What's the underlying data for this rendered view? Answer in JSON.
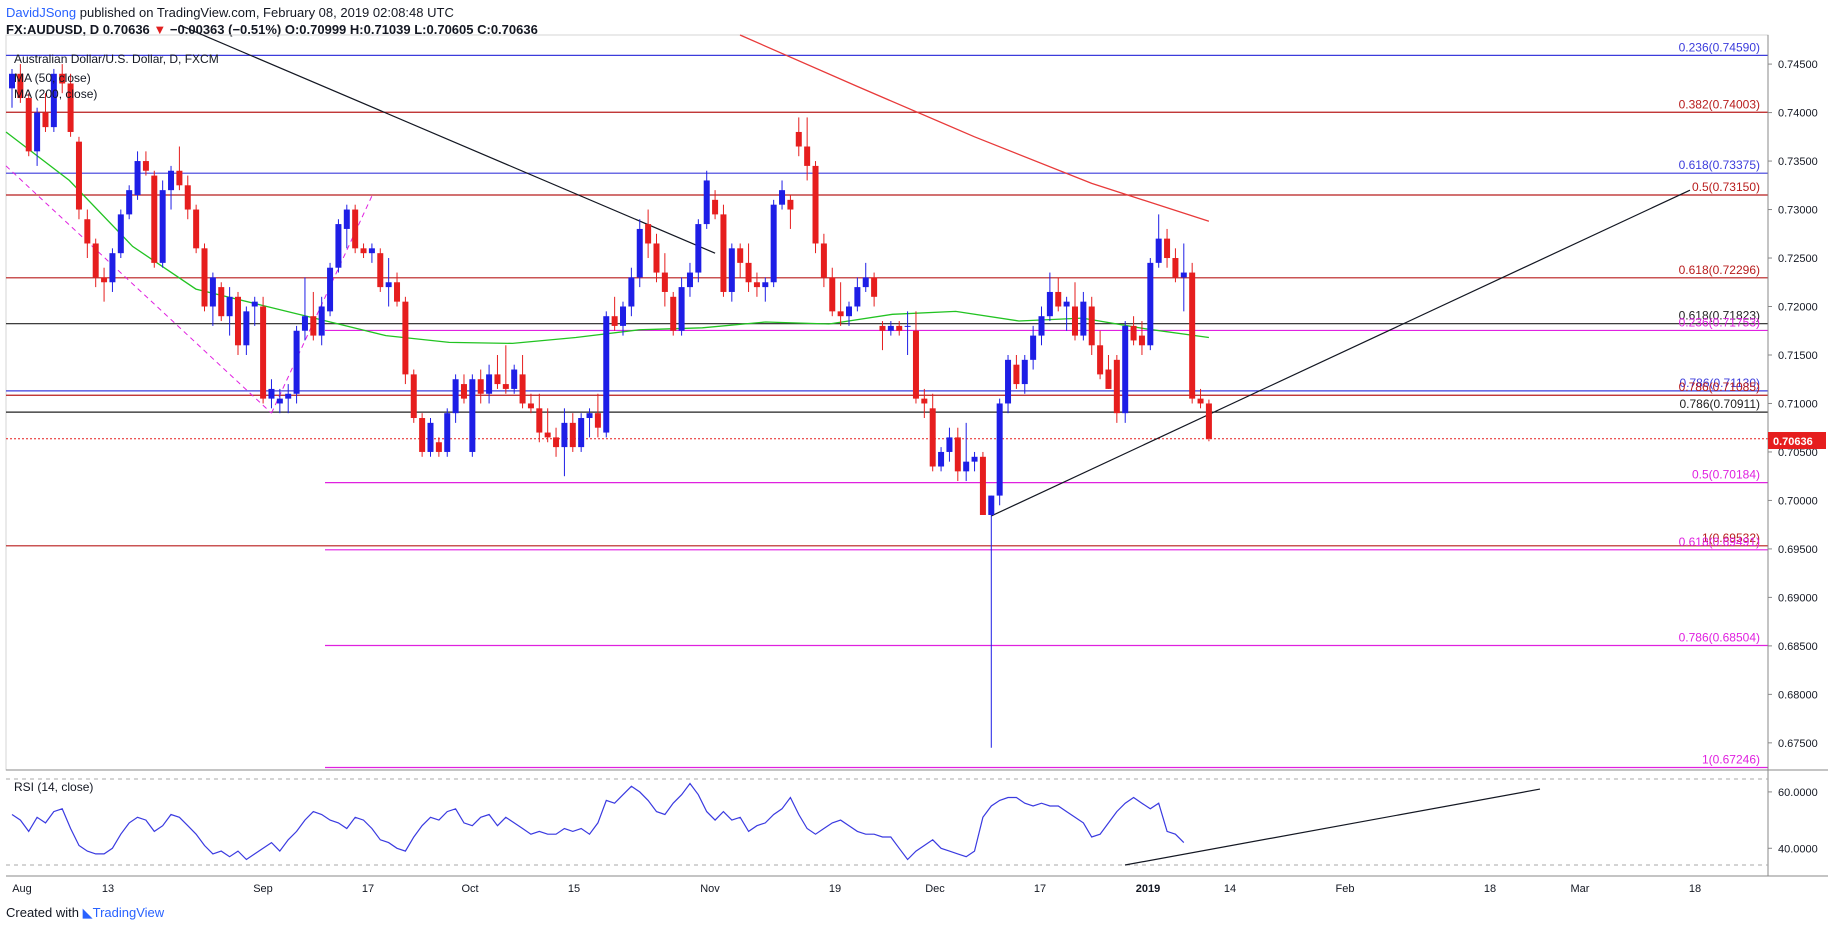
{
  "header": {
    "author": "DavidJSong",
    "published": "published on TradingView.com, February 08, 2019 02:08:48 UTC",
    "symbol": "FX:AUDUSD, D",
    "last": "0.70636",
    "change": "−0.00363 (−0.51%)",
    "ohlc": "O:0.70999 H:0.71039 L:0.70605 C:0.70636"
  },
  "legend": {
    "title": "Australian Dollar/U.S. Dollar, D, FXCM",
    "ma50": "MA (50, close)",
    "ma200": "MA (200, close)"
  },
  "rsi_label": "RSI (14, close)",
  "footer": {
    "created_with": "Created with",
    "brand": "TradingView"
  },
  "price_tag": "0.70636",
  "colors": {
    "up": "#1e1ee6",
    "down": "#e61e1e",
    "ma50": "#22c322",
    "ma200": "#e83a3a",
    "fib_blue": "#3c3cdc",
    "fib_red": "#b81c1c",
    "fib_magenta": "#e021e0"
  },
  "chart_data": [
    {
      "type": "candlestick",
      "title": "Australian Dollar/U.S. Dollar, D, FXCM",
      "ylim": [
        0.6722,
        0.748
      ],
      "y_ticks": [
        "0.74500",
        "0.74000",
        "0.73500",
        "0.73000",
        "0.72500",
        "0.72000",
        "0.71500",
        "0.71000",
        "0.70500",
        "0.70000",
        "0.69500",
        "0.69000",
        "0.68500",
        "0.68000",
        "0.67500"
      ],
      "x_ticks": [
        "Aug",
        "13",
        "Sep",
        "17",
        "Oct",
        "15",
        "Nov",
        "19",
        "Dec",
        "17",
        "2019",
        "14",
        "Feb",
        "18",
        "Mar",
        "18"
      ],
      "last_close": 0.70636,
      "fib_levels": [
        {
          "label": "0.236(0.74590)",
          "value": 0.7459,
          "color": "blue"
        },
        {
          "label": "0.382(0.74003)",
          "value": 0.74003,
          "color": "red"
        },
        {
          "label": "0.618(0.73375)",
          "value": 0.73375,
          "color": "blue"
        },
        {
          "label": "0.5(0.73150)",
          "value": 0.7315,
          "color": "red"
        },
        {
          "label": "0.618(0.72296)",
          "value": 0.72296,
          "color": "red"
        },
        {
          "label": "0.618(0.71823)",
          "value": 0.71823,
          "color": "black"
        },
        {
          "label": "0.236(0.71753)",
          "value": 0.71753,
          "color": "magenta"
        },
        {
          "label": "0.786(0.71130)",
          "value": 0.7113,
          "color": "blue"
        },
        {
          "label": "0.786(0.71085)",
          "value": 0.71085,
          "color": "red"
        },
        {
          "label": "0.786(0.70911)",
          "value": 0.70911,
          "color": "black"
        },
        {
          "label": "0.5(0.70184)",
          "value": 0.70184,
          "color": "magenta"
        },
        {
          "label": "1(0.69532)",
          "value": 0.69532,
          "color": "red"
        },
        {
          "label": "0.618(0.69491)",
          "value": 0.69491,
          "color": "magenta"
        },
        {
          "label": "0.786(0.68504)",
          "value": 0.68504,
          "color": "magenta"
        },
        {
          "label": "1(0.67246)",
          "value": 0.67246,
          "color": "magenta"
        }
      ],
      "candles": [
        [
          0.7425,
          0.7445,
          0.7405,
          0.744
        ],
        [
          0.744,
          0.745,
          0.741,
          0.7415
        ],
        [
          0.7415,
          0.742,
          0.7355,
          0.736
        ],
        [
          0.736,
          0.7405,
          0.7345,
          0.74
        ],
        [
          0.74,
          0.742,
          0.738,
          0.7385
        ],
        [
          0.7385,
          0.7445,
          0.738,
          0.744
        ],
        [
          0.744,
          0.745,
          0.742,
          0.743
        ],
        [
          0.743,
          0.744,
          0.7375,
          0.738
        ],
        [
          0.737,
          0.7375,
          0.729,
          0.73
        ],
        [
          0.729,
          0.73,
          0.725,
          0.7265
        ],
        [
          0.7265,
          0.727,
          0.722,
          0.723
        ],
        [
          0.723,
          0.724,
          0.7205,
          0.7225
        ],
        [
          0.7225,
          0.726,
          0.7215,
          0.7255
        ],
        [
          0.7255,
          0.73,
          0.725,
          0.7295
        ],
        [
          0.7295,
          0.7325,
          0.729,
          0.732
        ],
        [
          0.7315,
          0.736,
          0.731,
          0.735
        ],
        [
          0.735,
          0.736,
          0.7335,
          0.734
        ],
        [
          0.7335,
          0.734,
          0.724,
          0.7245
        ],
        [
          0.7245,
          0.733,
          0.724,
          0.732
        ],
        [
          0.732,
          0.7345,
          0.73,
          0.734
        ],
        [
          0.734,
          0.7365,
          0.732,
          0.7325
        ],
        [
          0.7325,
          0.7335,
          0.729,
          0.73
        ],
        [
          0.73,
          0.7305,
          0.7255,
          0.726
        ],
        [
          0.726,
          0.7265,
          0.7195,
          0.72
        ],
        [
          0.72,
          0.7235,
          0.718,
          0.723
        ],
        [
          0.722,
          0.7225,
          0.7185,
          0.719
        ],
        [
          0.719,
          0.722,
          0.717,
          0.721
        ],
        [
          0.721,
          0.7215,
          0.715,
          0.716
        ],
        [
          0.716,
          0.72,
          0.715,
          0.7195
        ],
        [
          0.72,
          0.721,
          0.718,
          0.7205
        ],
        [
          0.72,
          0.721,
          0.71,
          0.7105
        ],
        [
          0.7105,
          0.7125,
          0.7095,
          0.7115
        ],
        [
          0.71,
          0.7115,
          0.709,
          0.7105
        ],
        [
          0.7105,
          0.712,
          0.709,
          0.711
        ],
        [
          0.711,
          0.718,
          0.71,
          0.7175
        ],
        [
          0.7175,
          0.723,
          0.7165,
          0.719
        ],
        [
          0.719,
          0.7215,
          0.7165,
          0.717
        ],
        [
          0.717,
          0.721,
          0.716,
          0.72
        ],
        [
          0.7195,
          0.7245,
          0.719,
          0.724
        ],
        [
          0.724,
          0.729,
          0.7235,
          0.7285
        ],
        [
          0.728,
          0.7305,
          0.726,
          0.73
        ],
        [
          0.73,
          0.7305,
          0.7255,
          0.726
        ],
        [
          0.726,
          0.7265,
          0.725,
          0.7255
        ],
        [
          0.7255,
          0.7265,
          0.7245,
          0.726
        ],
        [
          0.7255,
          0.726,
          0.7215,
          0.722
        ],
        [
          0.722,
          0.725,
          0.72,
          0.7225
        ],
        [
          0.7225,
          0.7235,
          0.72,
          0.7205
        ],
        [
          0.7205,
          0.721,
          0.712,
          0.713
        ],
        [
          0.713,
          0.7135,
          0.708,
          0.7085
        ],
        [
          0.7085,
          0.709,
          0.7045,
          0.705
        ],
        [
          0.705,
          0.7085,
          0.7045,
          0.708
        ],
        [
          0.706,
          0.7065,
          0.7045,
          0.705
        ],
        [
          0.705,
          0.7095,
          0.7045,
          0.709
        ],
        [
          0.709,
          0.713,
          0.708,
          0.7125
        ],
        [
          0.712,
          0.713,
          0.71,
          0.7105
        ],
        [
          0.705,
          0.713,
          0.7045,
          0.7125
        ],
        [
          0.7125,
          0.7135,
          0.71,
          0.711
        ],
        [
          0.711,
          0.714,
          0.71,
          0.713
        ],
        [
          0.713,
          0.715,
          0.7115,
          0.712
        ],
        [
          0.712,
          0.716,
          0.711,
          0.7115
        ],
        [
          0.7115,
          0.714,
          0.711,
          0.7135
        ],
        [
          0.713,
          0.715,
          0.7095,
          0.71
        ],
        [
          0.71,
          0.711,
          0.709,
          0.7095
        ],
        [
          0.7095,
          0.711,
          0.706,
          0.707
        ],
        [
          0.707,
          0.7095,
          0.706,
          0.7065
        ],
        [
          0.7065,
          0.7075,
          0.7045,
          0.7055
        ],
        [
          0.7055,
          0.7095,
          0.7025,
          0.708
        ],
        [
          0.708,
          0.709,
          0.705,
          0.7055
        ],
        [
          0.7055,
          0.709,
          0.705,
          0.7085
        ],
        [
          0.7085,
          0.7095,
          0.7065,
          0.709
        ],
        [
          0.709,
          0.711,
          0.7065,
          0.7075
        ],
        [
          0.707,
          0.7195,
          0.7065,
          0.719
        ],
        [
          0.719,
          0.721,
          0.7175,
          0.718
        ],
        [
          0.718,
          0.7205,
          0.717,
          0.72
        ],
        [
          0.72,
          0.724,
          0.719,
          0.723
        ],
        [
          0.723,
          0.729,
          0.722,
          0.728
        ],
        [
          0.7285,
          0.73,
          0.725,
          0.7265
        ],
        [
          0.7265,
          0.7275,
          0.7225,
          0.7235
        ],
        [
          0.7235,
          0.7255,
          0.72,
          0.7215
        ],
        [
          0.721,
          0.7215,
          0.717,
          0.7175
        ],
        [
          0.7175,
          0.723,
          0.717,
          0.722
        ],
        [
          0.722,
          0.7245,
          0.721,
          0.7235
        ],
        [
          0.7235,
          0.729,
          0.7225,
          0.7285
        ],
        [
          0.7285,
          0.734,
          0.728,
          0.733
        ],
        [
          0.731,
          0.732,
          0.729,
          0.7295
        ],
        [
          0.7295,
          0.7305,
          0.721,
          0.7215
        ],
        [
          0.7215,
          0.7265,
          0.7205,
          0.726
        ],
        [
          0.726,
          0.7265,
          0.723,
          0.7245
        ],
        [
          0.7245,
          0.7265,
          0.7215,
          0.7225
        ],
        [
          0.7225,
          0.7235,
          0.721,
          0.722
        ],
        [
          0.722,
          0.723,
          0.7205,
          0.7225
        ],
        [
          0.7225,
          0.731,
          0.722,
          0.7305
        ],
        [
          0.7305,
          0.733,
          0.73,
          0.732
        ],
        [
          0.731,
          0.7315,
          0.728,
          0.73
        ],
        [
          0.738,
          0.7395,
          0.7355,
          0.7365
        ],
        [
          0.7365,
          0.7395,
          0.733,
          0.7345
        ],
        [
          0.7345,
          0.735,
          0.7255,
          0.7265
        ],
        [
          0.7265,
          0.7275,
          0.722,
          0.723
        ],
        [
          0.723,
          0.724,
          0.719,
          0.7195
        ],
        [
          0.7195,
          0.7225,
          0.718,
          0.719
        ],
        [
          0.719,
          0.7205,
          0.718,
          0.72
        ],
        [
          0.72,
          0.723,
          0.7195,
          0.722
        ],
        [
          0.722,
          0.7245,
          0.7215,
          0.723
        ],
        [
          0.723,
          0.7235,
          0.72,
          0.721
        ],
        [
          0.718,
          0.7185,
          0.7155,
          0.7175
        ],
        [
          0.7175,
          0.7185,
          0.717,
          0.718
        ],
        [
          0.718,
          0.7185,
          0.717,
          0.7175
        ],
        [
          0.718,
          0.7195,
          0.715,
          0.718
        ],
        [
          0.7175,
          0.7195,
          0.71,
          0.7105
        ],
        [
          0.7105,
          0.7115,
          0.7085,
          0.71
        ],
        [
          0.7095,
          0.711,
          0.703,
          0.7035
        ],
        [
          0.7035,
          0.7055,
          0.703,
          0.705
        ],
        [
          0.705,
          0.7075,
          0.704,
          0.7065
        ],
        [
          0.7065,
          0.7075,
          0.702,
          0.703
        ],
        [
          0.703,
          0.708,
          0.702,
          0.704
        ],
        [
          0.704,
          0.705,
          0.703,
          0.7045
        ],
        [
          0.7045,
          0.705,
          0.6985,
          0.6985
        ],
        [
          0.6985,
          0.7005,
          0.6745,
          0.7005
        ],
        [
          0.7005,
          0.7105,
          0.6995,
          0.71
        ],
        [
          0.71,
          0.715,
          0.709,
          0.7145
        ],
        [
          0.714,
          0.715,
          0.7115,
          0.712
        ],
        [
          0.712,
          0.715,
          0.711,
          0.7145
        ],
        [
          0.7145,
          0.718,
          0.7135,
          0.717
        ],
        [
          0.717,
          0.72,
          0.716,
          0.719
        ],
        [
          0.719,
          0.7235,
          0.7185,
          0.7215
        ],
        [
          0.7215,
          0.723,
          0.7195,
          0.72
        ],
        [
          0.72,
          0.721,
          0.7175,
          0.7205
        ],
        [
          0.72,
          0.7225,
          0.7165,
          0.717
        ],
        [
          0.717,
          0.7215,
          0.7165,
          0.7205
        ],
        [
          0.72,
          0.721,
          0.715,
          0.716
        ],
        [
          0.716,
          0.7175,
          0.7125,
          0.713
        ],
        [
          0.7135,
          0.715,
          0.7115,
          0.7115
        ],
        [
          0.7145,
          0.715,
          0.708,
          0.709
        ],
        [
          0.709,
          0.7185,
          0.708,
          0.718
        ],
        [
          0.718,
          0.719,
          0.716,
          0.7165
        ],
        [
          0.717,
          0.7185,
          0.715,
          0.716
        ],
        [
          0.716,
          0.725,
          0.7155,
          0.7245
        ],
        [
          0.7245,
          0.7295,
          0.724,
          0.727
        ],
        [
          0.727,
          0.728,
          0.724,
          0.725
        ],
        [
          0.725,
          0.726,
          0.7225,
          0.723
        ],
        [
          0.723,
          0.7265,
          0.7195,
          0.7235
        ],
        [
          0.7235,
          0.7245,
          0.71,
          0.7105
        ],
        [
          0.7105,
          0.7115,
          0.7095,
          0.71
        ],
        [
          0.71,
          0.7104,
          0.7061,
          0.70636
        ]
      ],
      "ma50": [
        0.738,
        0.733,
        0.7262,
        0.7218,
        0.7202,
        0.7186,
        0.717,
        0.7163,
        0.7162,
        0.7168,
        0.7176,
        0.7178,
        0.7184,
        0.7182,
        0.7192,
        0.7195,
        0.7185,
        0.7188,
        0.7177,
        0.7168
      ],
      "ma200": [
        0.748,
        0.7427,
        0.7375,
        0.7327,
        0.7288
      ]
    },
    {
      "type": "line",
      "title": "RSI (14, close)",
      "ylim": [
        33,
        66
      ],
      "y_ticks": [
        "60.0000",
        "40.0000"
      ],
      "values": [
        52,
        50,
        46,
        51,
        49,
        53,
        54,
        47,
        41,
        39,
        38,
        38,
        40,
        45,
        49,
        51,
        50,
        46,
        48,
        52,
        51,
        48,
        45,
        41,
        38,
        39,
        37,
        39,
        36,
        38,
        40,
        42,
        39,
        43,
        46,
        50,
        53,
        52,
        50,
        49,
        47,
        51,
        50,
        47,
        43,
        42,
        40,
        39,
        44,
        48,
        51,
        50,
        53,
        54,
        49,
        48,
        51,
        52,
        48,
        51,
        49,
        47,
        45,
        46,
        45,
        45,
        47,
        46,
        47,
        45,
        49,
        57,
        56,
        59,
        62,
        60,
        57,
        53,
        52,
        56,
        59,
        63,
        59,
        53,
        50,
        53,
        50,
        51,
        46,
        48,
        49,
        52,
        54,
        58,
        52,
        47,
        45,
        47,
        49,
        50,
        48,
        46,
        45,
        45,
        44,
        44,
        40,
        36,
        39,
        41,
        43,
        40,
        39,
        38,
        37,
        39,
        51,
        55,
        57,
        58,
        58,
        56,
        55,
        56,
        55,
        55,
        53,
        51,
        49,
        44,
        45,
        49,
        53,
        56,
        58,
        56,
        54,
        56,
        46,
        45,
        42
      ]
    }
  ]
}
